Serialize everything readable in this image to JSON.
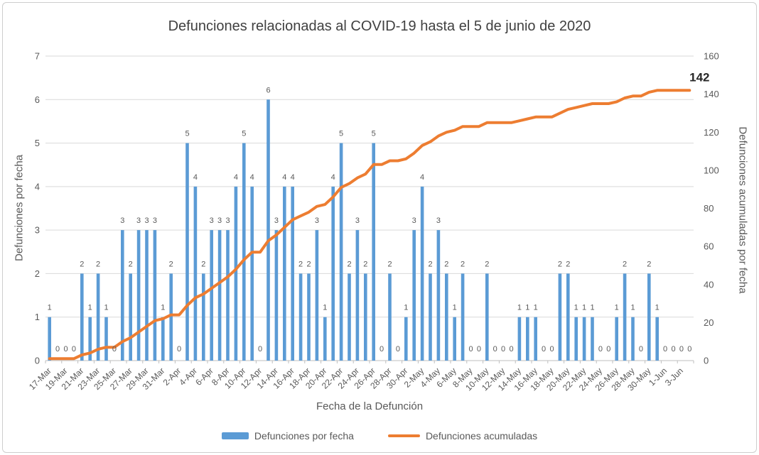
{
  "title": "Defunciones relacionadas al COVID-19 hasta el 5 de junio de 2020",
  "axes": {
    "left": {
      "title": "Defunciones por fecha",
      "ticks": [
        0,
        1,
        2,
        3,
        4,
        5,
        6,
        7
      ]
    },
    "right": {
      "title": "Defunciones acumuladas por fecha",
      "ticks": [
        0,
        20,
        40,
        60,
        80,
        100,
        120,
        140,
        160
      ]
    },
    "x": {
      "title": "Fecha de la Defunción"
    }
  },
  "legend": {
    "items": [
      {
        "label": "Defunciones por fecha",
        "type": "bar",
        "color": "#5B9BD5"
      },
      {
        "label": "Defunciones acumuladas",
        "type": "line",
        "color": "#ED7D31"
      }
    ]
  },
  "colors": {
    "bar": "#5B9BD5",
    "line": "#ED7D31",
    "grid": "#D9D9D9",
    "axis": "#BFBFBF",
    "text": "#595959",
    "title": "#404040",
    "annotation": "#262626",
    "border": "#CDCDCD"
  },
  "chart_data": {
    "type": "bar",
    "combo": "bar + line (secondary axis)",
    "title": "Defunciones relacionadas al COVID-19 hasta el 5 de junio de 2020",
    "xlabel": "Fecha de la Defunción",
    "ylabel_left": "Defunciones por fecha",
    "ylabel_right": "Defunciones acumuladas por fecha",
    "ylim_left": [
      0,
      7
    ],
    "ylim_right": [
      0,
      160
    ],
    "grid": true,
    "legend_position": "bottom",
    "x_label_interval": 2,
    "bar_data_labels": true,
    "categories": [
      "17-Mar",
      "18-Mar",
      "19-Mar",
      "20-Mar",
      "21-Mar",
      "22-Mar",
      "23-Mar",
      "24-Mar",
      "25-Mar",
      "26-Mar",
      "27-Mar",
      "28-Mar",
      "29-Mar",
      "30-Mar",
      "31-Mar",
      "1-Apr",
      "2-Apr",
      "3-Apr",
      "4-Apr",
      "5-Apr",
      "6-Apr",
      "7-Apr",
      "8-Apr",
      "9-Apr",
      "10-Apr",
      "11-Apr",
      "12-Apr",
      "13-Apr",
      "14-Apr",
      "15-Apr",
      "16-Apr",
      "17-Apr",
      "18-Apr",
      "19-Apr",
      "20-Apr",
      "21-Apr",
      "22-Apr",
      "23-Apr",
      "24-Apr",
      "25-Apr",
      "26-Apr",
      "27-Apr",
      "28-Apr",
      "29-Apr",
      "30-Apr",
      "1-May",
      "2-May",
      "3-May",
      "4-May",
      "5-May",
      "6-May",
      "7-May",
      "8-May",
      "9-May",
      "10-May",
      "11-May",
      "12-May",
      "13-May",
      "14-May",
      "15-May",
      "16-May",
      "17-May",
      "18-May",
      "19-May",
      "20-May",
      "21-May",
      "22-May",
      "23-May",
      "24-May",
      "25-May",
      "26-May",
      "27-May",
      "28-May",
      "29-May",
      "30-May",
      "31-May",
      "1-Jun",
      "2-Jun",
      "3-Jun",
      "4-Jun"
    ],
    "series": [
      {
        "name": "Defunciones por fecha",
        "type": "bar",
        "axis": "left",
        "color": "#5B9BD5",
        "values": [
          1,
          0,
          0,
          0,
          2,
          1,
          2,
          1,
          0,
          3,
          2,
          3,
          3,
          3,
          1,
          2,
          0,
          5,
          4,
          2,
          3,
          3,
          3,
          4,
          5,
          4,
          0,
          6,
          3,
          4,
          4,
          2,
          2,
          3,
          1,
          4,
          5,
          2,
          3,
          2,
          5,
          0,
          2,
          0,
          1,
          3,
          4,
          2,
          3,
          2,
          1,
          2,
          0,
          0,
          2,
          0,
          0,
          0,
          1,
          1,
          1,
          0,
          0,
          2,
          2,
          1,
          1,
          1,
          0,
          0,
          1,
          2,
          1,
          0,
          2,
          1,
          0,
          0,
          0,
          0
        ]
      },
      {
        "name": "Defunciones acumuladas",
        "type": "line",
        "axis": "right",
        "color": "#ED7D31",
        "final_label": "142",
        "values": [
          1,
          1,
          1,
          1,
          3,
          4,
          6,
          7,
          7,
          10,
          12,
          15,
          18,
          21,
          22,
          24,
          24,
          29,
          33,
          35,
          38,
          41,
          44,
          48,
          53,
          57,
          57,
          63,
          66,
          70,
          74,
          76,
          78,
          81,
          82,
          86,
          91,
          93,
          96,
          98,
          103,
          103,
          105,
          105,
          106,
          109,
          113,
          115,
          118,
          120,
          121,
          123,
          123,
          123,
          125,
          125,
          125,
          125,
          126,
          127,
          128,
          128,
          128,
          130,
          132,
          133,
          134,
          135,
          135,
          135,
          136,
          138,
          139,
          139,
          141,
          142,
          142,
          142,
          142,
          142
        ]
      }
    ]
  }
}
